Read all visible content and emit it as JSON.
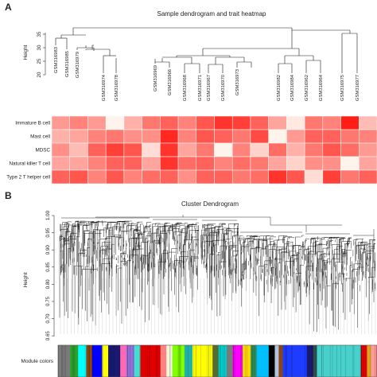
{
  "panel_a": {
    "label": "A",
    "title": "Sample dendrogram and trait heatmap",
    "ylabel": "Height",
    "y_ticks": [
      "35",
      "30",
      "25",
      "20"
    ],
    "samples": [
      "GSM316983",
      "GSM316985",
      "GSM316979",
      "GSM316974",
      "GSM316978",
      "GSM316969",
      "GSM316966",
      "GSM316968",
      "GSM316971",
      "GSM316967",
      "GSM316970",
      "GSM316973",
      "GSM316982",
      "GSM316984",
      "GSM316962",
      "GSM316964",
      "GSM316975",
      "GSM316977"
    ],
    "traits": [
      "Immature  B cell",
      "Mast cell",
      "MDSC",
      "Natural killer T cell",
      "Type 2 T helper cell"
    ],
    "heatmap_intensity": [
      [
        0.45,
        0.55,
        0.45,
        0.05,
        0.35,
        0.6,
        0.7,
        0.55,
        0.75,
        0.9,
        0.85,
        0.7,
        0.4,
        0.1,
        0.6,
        0.55,
        1.0,
        0.3
      ],
      [
        0.35,
        0.4,
        0.55,
        0.6,
        0.5,
        0.5,
        0.95,
        0.55,
        0.75,
        0.7,
        0.6,
        0.8,
        0.05,
        0.45,
        0.7,
        0.7,
        0.6,
        0.55
      ],
      [
        0.5,
        0.3,
        0.7,
        0.85,
        0.75,
        0.15,
        0.9,
        0.4,
        0.6,
        0.05,
        0.55,
        0.2,
        0.65,
        0.35,
        0.6,
        0.75,
        0.65,
        0.45
      ],
      [
        0.4,
        0.4,
        0.55,
        0.7,
        0.7,
        0.4,
        0.9,
        0.65,
        0.7,
        0.55,
        0.65,
        0.6,
        0.4,
        0.2,
        0.5,
        0.5,
        0.05,
        0.4
      ],
      [
        0.7,
        0.75,
        0.55,
        0.75,
        0.55,
        0.65,
        0.7,
        0.5,
        0.7,
        0.7,
        0.6,
        0.65,
        0.9,
        0.75,
        0.15,
        0.85,
        0.6,
        0.7
      ]
    ]
  },
  "panel_b": {
    "label": "B",
    "title": "Cluster Dendrogram",
    "ylabel": "Height",
    "y_ticks": [
      "1.00",
      "0.95",
      "0.90",
      "0.85",
      "0.80",
      "0.75",
      "0.70",
      "0.65"
    ],
    "module_label": "Module colors",
    "module_colors": [
      {
        "color": "#7a7a7a",
        "w": 3
      },
      {
        "color": "#2ca02c",
        "w": 2
      },
      {
        "color": "#00ffff",
        "w": 2
      },
      {
        "color": "#8b4513",
        "w": 1.5
      },
      {
        "color": "#0000ff",
        "w": 2.5
      },
      {
        "color": "#ffff00",
        "w": 1.5
      },
      {
        "color": "#191970",
        "w": 3
      },
      {
        "color": "#ff69b4",
        "w": 1.5
      },
      {
        "color": "#9370db",
        "w": 2
      },
      {
        "color": "#40e0d0",
        "w": 1.5
      },
      {
        "color": "#e00000",
        "w": 5
      },
      {
        "color": "#ff8080",
        "w": 1.5
      },
      {
        "color": "#f5f5dc",
        "w": 1.5
      },
      {
        "color": "#7fff00",
        "w": 3
      },
      {
        "color": "#20b2aa",
        "w": 2
      },
      {
        "color": "#ffff00",
        "w": 5
      },
      {
        "color": "#556b2f",
        "w": 1.5
      },
      {
        "color": "#00ced1",
        "w": 2
      },
      {
        "color": "#7a7a7a",
        "w": 1.5
      },
      {
        "color": "#ff00ff",
        "w": 2.5
      },
      {
        "color": "#ffd700",
        "w": 2
      },
      {
        "color": "#2e8b57",
        "w": 1.5
      },
      {
        "color": "#00bfff",
        "w": 3
      },
      {
        "color": "#000000",
        "w": 1.5
      },
      {
        "color": "#b0c4de",
        "w": 1
      },
      {
        "color": "#8b4513",
        "w": 1
      },
      {
        "color": "#1e3cff",
        "w": 6
      },
      {
        "color": "#191970",
        "w": 1.5
      },
      {
        "color": "#2f4f4f",
        "w": 1
      },
      {
        "color": "#48d1cc",
        "w": 11
      },
      {
        "color": "#e00000",
        "w": 1.5
      },
      {
        "color": "#daa520",
        "w": 1
      },
      {
        "color": "#ff9999",
        "w": 1.5
      }
    ]
  }
}
